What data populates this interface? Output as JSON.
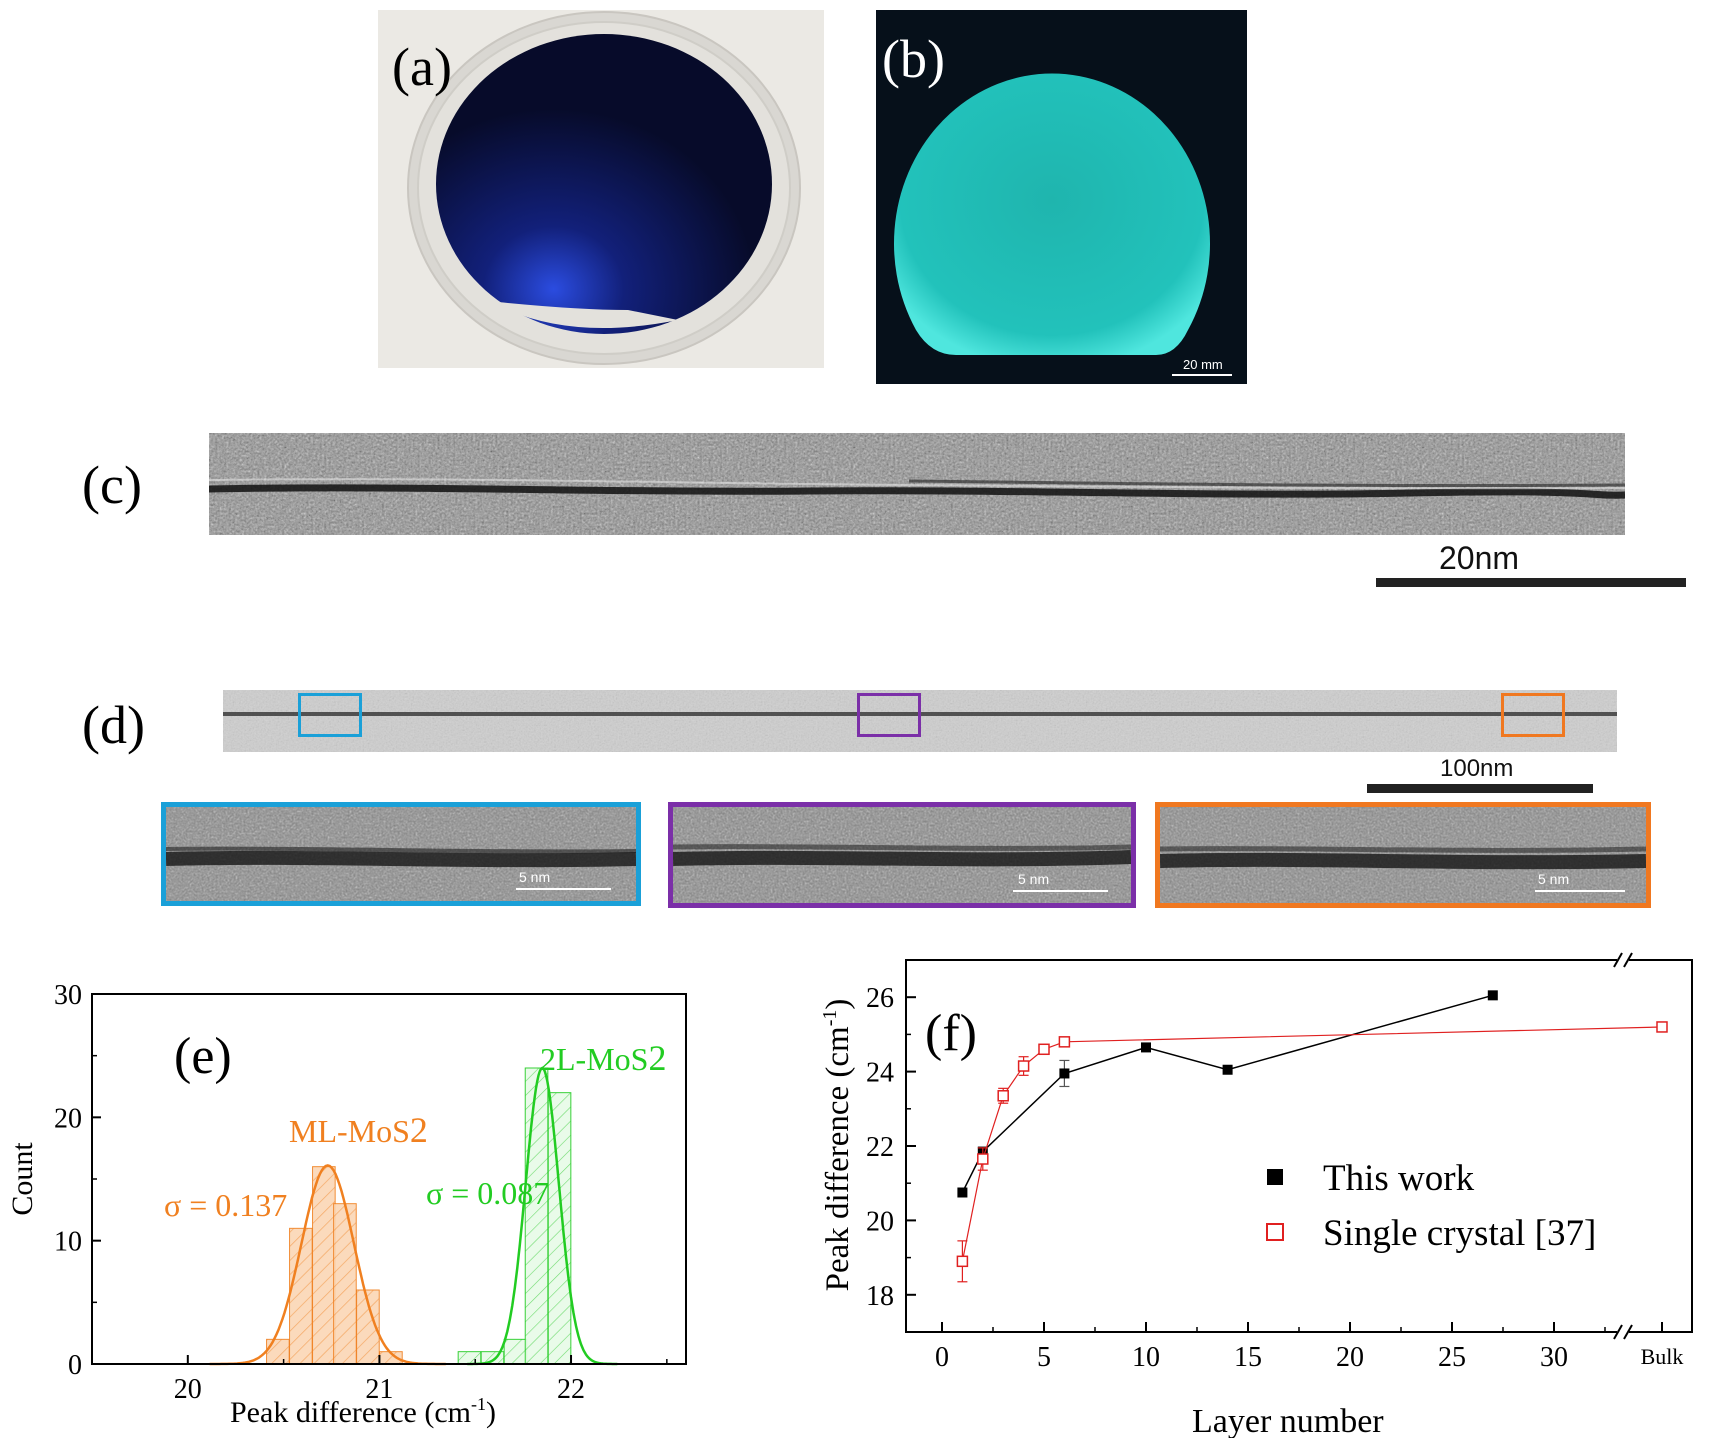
{
  "panels": {
    "a": {
      "label": "(a)"
    },
    "b": {
      "label": "(b)",
      "scalebar": "20 mm"
    },
    "c": {
      "label": "(c)",
      "scalebar": "20nm"
    },
    "d": {
      "label": "(d)",
      "scalebar": "100nm",
      "insets": [
        {
          "scalebar": "5 nm",
          "color": "#1aa0d8"
        },
        {
          "scalebar": "5 nm",
          "color": "#7b2fa8"
        },
        {
          "scalebar": "5 nm",
          "color": "#f07820"
        }
      ]
    },
    "e": {
      "label": "(e)"
    },
    "f": {
      "label": "(f)"
    }
  },
  "colors": {
    "ml": "#f08020",
    "twol": "#22cc22",
    "this_work": "#000000",
    "single_crystal": "#e02020",
    "b_teal": "#2ec9c4"
  },
  "chart_data": [
    {
      "type": "bar",
      "panel": "e",
      "xlabel": "Peak difference (cm",
      "xlabel_sup": "-1",
      "xlabel_close": ")",
      "ylabel": "Count",
      "xlim": [
        19.5,
        22.6
      ],
      "ylim": [
        0,
        30
      ],
      "xticks": [
        "20",
        "21",
        "22"
      ],
      "yticks": [
        "0",
        "10",
        "20",
        "30"
      ],
      "series": [
        {
          "name": "ML-MoS2",
          "label_main": "ML-MoS",
          "label_sub": "2",
          "sigma": "σ = 0.137",
          "bin_width": 0.118,
          "bins": [
            20.47,
            20.59,
            20.71,
            20.82,
            20.94,
            21.06
          ],
          "counts": [
            2,
            11,
            16,
            13,
            6,
            1
          ],
          "fit": {
            "amp": 16.1,
            "mean": 20.73,
            "sd": 0.137
          }
        },
        {
          "name": "2L-MoS2",
          "label_main": "2L-MoS",
          "label_sub": "2",
          "sigma": "σ = 0.087",
          "bin_width": 0.118,
          "bins": [
            21.47,
            21.59,
            21.71,
            21.82,
            21.94
          ],
          "counts": [
            1,
            1,
            2,
            24,
            22
          ],
          "fit": {
            "amp": 24,
            "mean": 21.85,
            "sd": 0.087
          }
        }
      ]
    },
    {
      "type": "line",
      "panel": "f",
      "xlabel": "Layer number",
      "ylabel": "Peak difference (cm",
      "ylabel_sup": "-1",
      "ylabel_close": ")",
      "xlim": [
        -4,
        33
      ],
      "ylim": [
        17,
        27
      ],
      "xticks": [
        "0",
        "5",
        "10",
        "15",
        "20",
        "25",
        "30",
        "Bulk"
      ],
      "yticks": [
        "18",
        "20",
        "22",
        "24",
        "26"
      ],
      "series": [
        {
          "name": "This work",
          "marker": "filled-square",
          "points": [
            {
              "x": 1,
              "y": 20.75,
              "err": 0
            },
            {
              "x": 2,
              "y": 21.85,
              "err": 0
            },
            {
              "x": 6,
              "y": 23.95,
              "err": 0.35
            },
            {
              "x": 10,
              "y": 24.65,
              "err": 0
            },
            {
              "x": 14,
              "y": 24.05,
              "err": 0
            },
            {
              "x": 27,
              "y": 26.05,
              "err": 0
            }
          ]
        },
        {
          "name": "Single crystal [37]",
          "marker": "open-square",
          "points": [
            {
              "x": 1,
              "y": 18.9,
              "err": 0.55
            },
            {
              "x": 2,
              "y": 21.65,
              "err": 0.3
            },
            {
              "x": 3,
              "y": 23.35,
              "err": 0.2
            },
            {
              "x": 4,
              "y": 24.15,
              "err": 0.25
            },
            {
              "x": 5,
              "y": 24.6,
              "err": 0
            },
            {
              "x": 6,
              "y": 24.8,
              "err": 0
            },
            {
              "x": "Bulk",
              "y": 25.2,
              "err": 0
            }
          ]
        }
      ]
    }
  ]
}
